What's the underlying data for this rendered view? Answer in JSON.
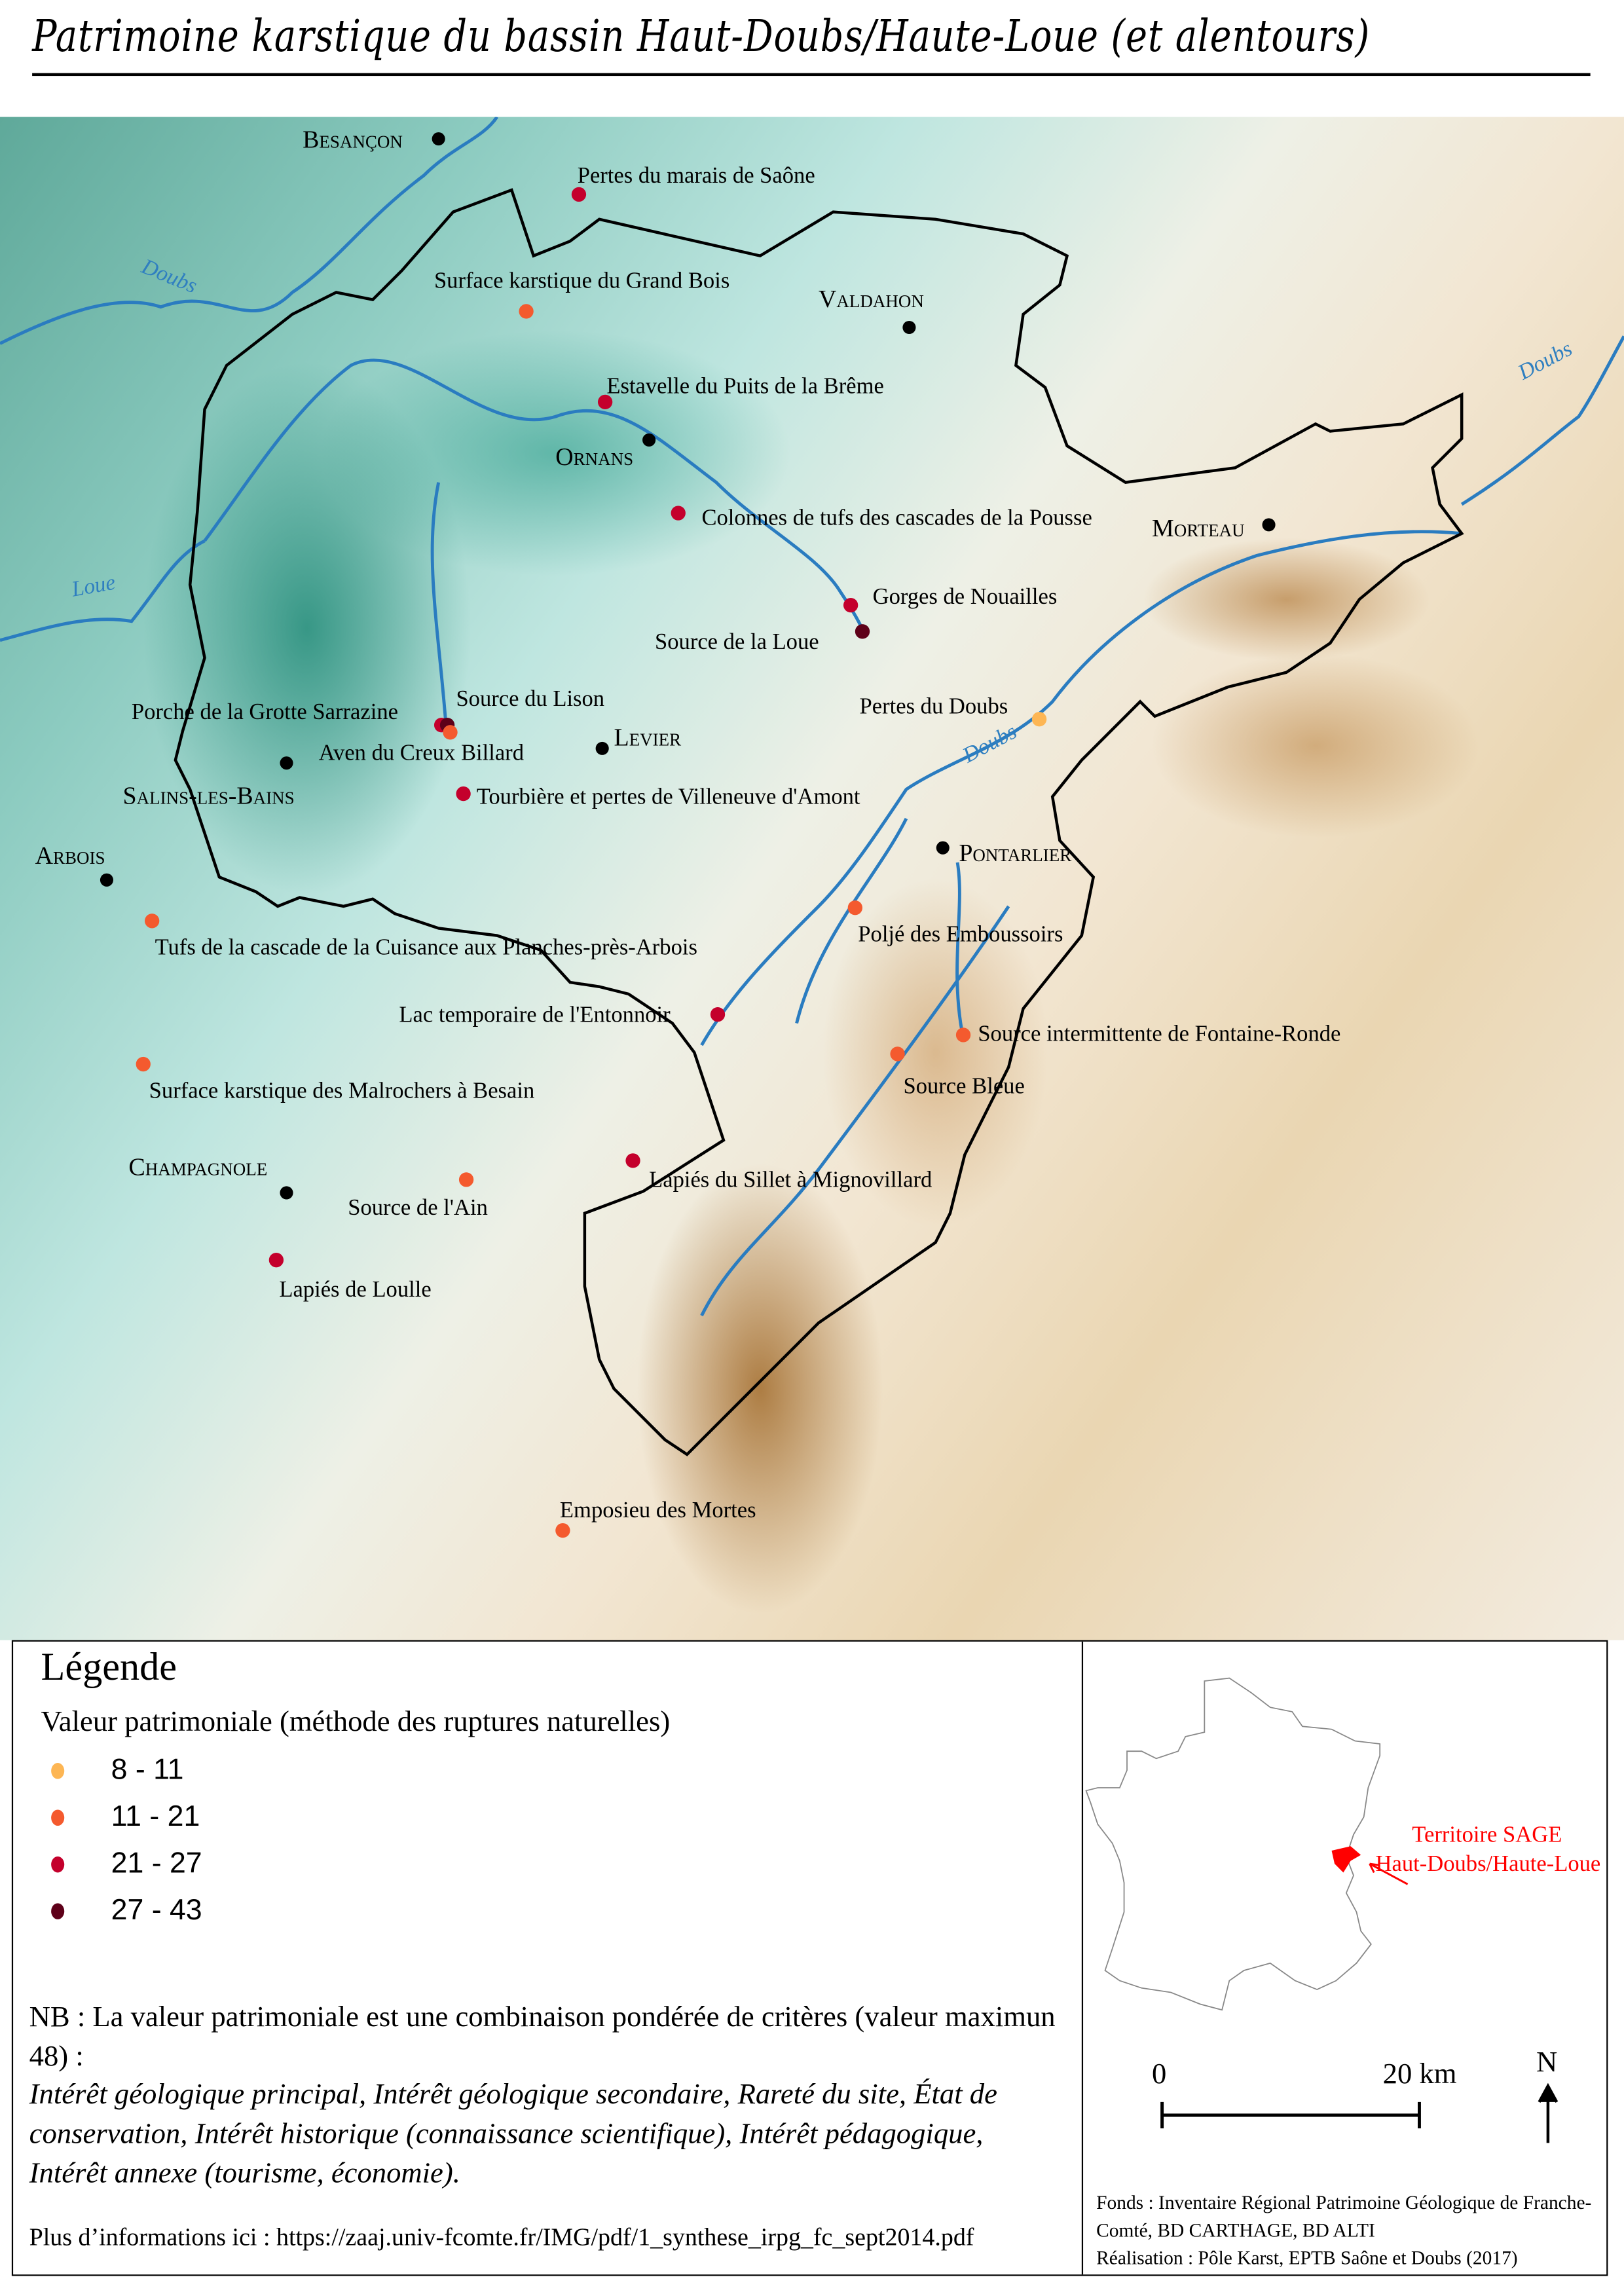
{
  "title": "Patrimoine karstique du bassin Haut-Doubs/Haute-Loue (et alentours)",
  "colors": {
    "8-11": "#FDB654",
    "11-21": "#F45A2E",
    "21-27": "#C4002C",
    "27-43": "#5E0019",
    "town": "#000000",
    "river": "#2a7cc0",
    "inset_territory": "#FF0000"
  },
  "towns": [
    "Besançon",
    "Valdahon",
    "Ornans",
    "Morteau",
    "Levier",
    "Salins-les-Bains",
    "Arbois",
    "Pontarlier",
    "Champagnole"
  ],
  "rivers": [
    "Doubs",
    "Loue",
    "Doubs",
    "Doubs"
  ],
  "sites": [
    {
      "name": "Pertes du marais de Saône",
      "class": "21-27"
    },
    {
      "name": "Surface karstique du Grand Bois",
      "class": "11-21"
    },
    {
      "name": "Estavelle du Puits de la Brême",
      "class": "21-27"
    },
    {
      "name": "Colonnes de tufs des cascades de la Pousse",
      "class": "21-27"
    },
    {
      "name": "Gorges de Nouailles",
      "class": "21-27"
    },
    {
      "name": "Source de la Loue",
      "class": "27-43"
    },
    {
      "name": "Pertes du Doubs",
      "class": "8-11"
    },
    {
      "name": "Porche de la Grotte Sarrazine",
      "class": "21-27"
    },
    {
      "name": "Source du Lison",
      "class": "27-43"
    },
    {
      "name": "Aven du Creux Billard",
      "class": "11-21"
    },
    {
      "name": "Tourbière et pertes de Villeneuve d'Amont",
      "class": "21-27"
    },
    {
      "name": "Tufs de la cascade de la Cuisance aux Planches-près-Arbois",
      "class": "11-21"
    },
    {
      "name": "Poljé des Emboussoirs",
      "class": "11-21"
    },
    {
      "name": "Lac temporaire de l'Entonnoir",
      "class": "21-27"
    },
    {
      "name": "Source intermittente de Fontaine-Ronde",
      "class": "11-21"
    },
    {
      "name": "Source Bleue",
      "class": "11-21"
    },
    {
      "name": "Surface karstique des Malrochers à Besain",
      "class": "11-21"
    },
    {
      "name": "Lapiés du Sillet à Mignovillard",
      "class": "21-27"
    },
    {
      "name": "Source de l'Ain",
      "class": "11-21"
    },
    {
      "name": "Lapiés de Loulle",
      "class": "21-27"
    },
    {
      "name": "Emposieu des Mortes",
      "class": "11-21"
    }
  ],
  "legend": {
    "title": "Légende",
    "subtitle": "Valeur patrimoniale (méthode des ruptures naturelles)",
    "classes": [
      "8 - 11",
      "11 - 21",
      "21 - 27",
      "27 - 43"
    ],
    "nb": "NB : La valeur patrimoniale est une combinaison pondérée de critères (valeur maximun 48) :",
    "criteria": "Intérêt géologique principal, Intérêt géologique secondaire, Rareté du site, État de conservation, Intérêt historique (connaissance scientifique), Intérêt pédagogique, Intérêt annexe (tourisme, économie).",
    "more_info": "Plus d’informations ici : https://zaaj.univ-fcomte.fr/IMG/pdf/1_synthese_irpg_fc_sept2014.pdf"
  },
  "inset": {
    "label_line1": "Territoire SAGE",
    "label_line2": "Haut-Doubs/Haute-Loue"
  },
  "scale": {
    "start": "0",
    "end": "20 km"
  },
  "north": "N",
  "credits": {
    "sources": "Fonds : Inventaire Régional Patrimoine Géologique de Franche-Comté, BD CARTHAGE, BD ALTI",
    "author": "Réalisation :  Pôle Karst, EPTB Saône et Doubs (2017)"
  }
}
